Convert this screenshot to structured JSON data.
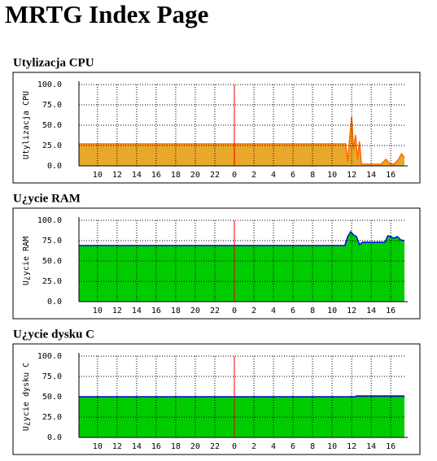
{
  "title": "MRTG Index Page",
  "chart_data": [
    {
      "type": "area",
      "title": "Utylizacja CPU",
      "y_label": "Utylizacja CPU",
      "xlim": [
        8.1,
        41.4
      ],
      "ylim": [
        0,
        100
      ],
      "xticks": [
        {
          "value": 10,
          "label": "10"
        },
        {
          "value": 12,
          "label": "12"
        },
        {
          "value": 14,
          "label": "14"
        },
        {
          "value": 16,
          "label": "16"
        },
        {
          "value": 18,
          "label": "18"
        },
        {
          "value": 20,
          "label": "20"
        },
        {
          "value": 22,
          "label": "22"
        },
        {
          "value": 24,
          "label": "0"
        },
        {
          "value": 26,
          "label": "2"
        },
        {
          "value": 28,
          "label": "4"
        },
        {
          "value": 30,
          "label": "6"
        },
        {
          "value": 32,
          "label": "8"
        },
        {
          "value": 34,
          "label": "10"
        },
        {
          "value": 36,
          "label": "12"
        },
        {
          "value": 38,
          "label": "14"
        },
        {
          "value": 40,
          "label": "16"
        }
      ],
      "yticks": [
        {
          "value": 0,
          "label": "0.0"
        },
        {
          "value": 25,
          "label": "25.0"
        },
        {
          "value": 50,
          "label": "50.0"
        },
        {
          "value": 75,
          "label": "75.0"
        },
        {
          "value": 100,
          "label": "100.0"
        }
      ],
      "grid": true,
      "fill_color": "#e8a82a",
      "line_color": "#ff6a00",
      "x": [
        8.1,
        35.4,
        35.6,
        35.8,
        36.0,
        36.2,
        36.4,
        36.6,
        36.8,
        37.0,
        37.3,
        37.6,
        39.0,
        39.5,
        39.9,
        40.3,
        40.8,
        41.1,
        41.4
      ],
      "values": [
        27,
        27,
        5,
        35,
        60,
        20,
        38,
        8,
        30,
        2,
        2,
        2,
        2,
        8,
        3,
        2,
        8,
        15,
        10
      ]
    },
    {
      "type": "area",
      "title": "U¿ycie RAM",
      "y_label": "U¿ycie RAM",
      "xlim": [
        8.1,
        41.4
      ],
      "ylim": [
        0,
        100
      ],
      "xticks": [
        {
          "value": 10,
          "label": "10"
        },
        {
          "value": 12,
          "label": "12"
        },
        {
          "value": 14,
          "label": "14"
        },
        {
          "value": 16,
          "label": "16"
        },
        {
          "value": 18,
          "label": "18"
        },
        {
          "value": 20,
          "label": "20"
        },
        {
          "value": 22,
          "label": "22"
        },
        {
          "value": 24,
          "label": "0"
        },
        {
          "value": 26,
          "label": "2"
        },
        {
          "value": 28,
          "label": "4"
        },
        {
          "value": 30,
          "label": "6"
        },
        {
          "value": 32,
          "label": "8"
        },
        {
          "value": 34,
          "label": "10"
        },
        {
          "value": 36,
          "label": "12"
        },
        {
          "value": 38,
          "label": "14"
        },
        {
          "value": 40,
          "label": "16"
        }
      ],
      "yticks": [
        {
          "value": 0,
          "label": "0.0"
        },
        {
          "value": 25,
          "label": "25.0"
        },
        {
          "value": 50,
          "label": "50.0"
        },
        {
          "value": 75,
          "label": "75.0"
        },
        {
          "value": 100,
          "label": "100.0"
        }
      ],
      "grid": true,
      "fill_color": "#00cc00",
      "line_color": "#0000ff",
      "x": [
        8.1,
        35.3,
        35.6,
        35.9,
        36.2,
        36.5,
        36.8,
        37.1,
        37.4,
        39.4,
        39.7,
        40.0,
        40.3,
        40.7,
        41.0,
        41.4
      ],
      "values": [
        69,
        69,
        80,
        86,
        82,
        80,
        70,
        73,
        73,
        73,
        81,
        80,
        78,
        80,
        76,
        75
      ]
    },
    {
      "type": "area",
      "title": "U¿ycie dysku C",
      "y_label": "U¿ycie dysku C",
      "xlim": [
        8.1,
        41.4
      ],
      "ylim": [
        0,
        100
      ],
      "xticks": [
        {
          "value": 10,
          "label": "10"
        },
        {
          "value": 12,
          "label": "12"
        },
        {
          "value": 14,
          "label": "14"
        },
        {
          "value": 16,
          "label": "16"
        },
        {
          "value": 18,
          "label": "18"
        },
        {
          "value": 20,
          "label": "20"
        },
        {
          "value": 22,
          "label": "22"
        },
        {
          "value": 24,
          "label": "0"
        },
        {
          "value": 26,
          "label": "2"
        },
        {
          "value": 28,
          "label": "4"
        },
        {
          "value": 30,
          "label": "6"
        },
        {
          "value": 32,
          "label": "8"
        },
        {
          "value": 34,
          "label": "10"
        },
        {
          "value": 36,
          "label": "12"
        },
        {
          "value": 38,
          "label": "14"
        },
        {
          "value": 40,
          "label": "16"
        }
      ],
      "yticks": [
        {
          "value": 0,
          "label": "0.0"
        },
        {
          "value": 25,
          "label": "25.0"
        },
        {
          "value": 50,
          "label": "50.0"
        },
        {
          "value": 75,
          "label": "75.0"
        },
        {
          "value": 100,
          "label": "100.0"
        }
      ],
      "grid": true,
      "fill_color": "#00cc00",
      "line_color": "#0000ff",
      "x": [
        8.1,
        36.3,
        36.5,
        41.4
      ],
      "values": [
        50,
        50,
        51,
        51
      ]
    }
  ]
}
